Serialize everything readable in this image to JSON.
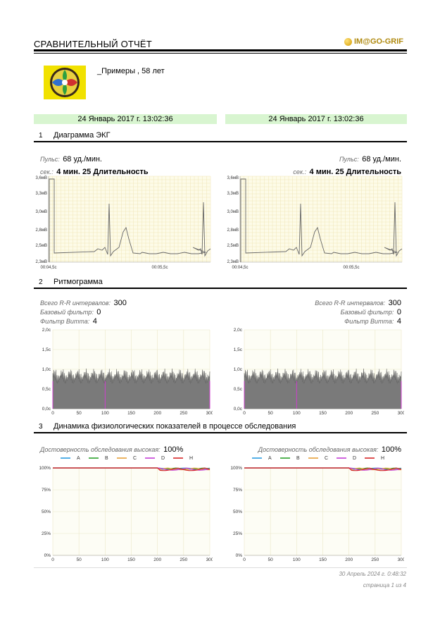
{
  "header": {
    "title": "СРАВНИТЕЛЬНЫЙ ОТЧЁТ",
    "logo": "IM@GO-GRIF"
  },
  "patient": {
    "name_age": "_Примеры , 58 лет"
  },
  "dates": {
    "left": "24 Январь 2017 г. 13:02:36",
    "right": "24 Январь 2017 г. 13:02:36"
  },
  "sections": [
    {
      "num": "1",
      "title": "Диаграмма ЭКГ"
    },
    {
      "num": "2",
      "title": "Ритмограмма"
    },
    {
      "num": "3",
      "title": "Динамика физиологических показателей в процессе обследования"
    }
  ],
  "ecg": {
    "pulse_label": "Пульс:",
    "pulse_value": "68 уд./мин.",
    "sec_label": "сек.:",
    "sec_value": "4 мин. 25 Длительность",
    "y_ticks": [
      "3,6мВ",
      "3,3мВ",
      "3,0мВ",
      "2,8мВ",
      "2,5мВ",
      "2,3мВ"
    ],
    "x_ticks": [
      "00:04,5с",
      "00:05,5с"
    ]
  },
  "rhythm": {
    "total_label": "Всего R-R интервалов:",
    "total_value": "300",
    "base_label": "Базовый фильтр:",
    "base_value": "0",
    "witt_label": "Фильтр Витта:",
    "witt_value": "4",
    "y_ticks": [
      "2,0с",
      "1,5с",
      "1,0с",
      "0,5с",
      "0,0с"
    ],
    "x_ticks": [
      "0",
      "50",
      "100",
      "150",
      "200",
      "250",
      "300"
    ]
  },
  "dynamics": {
    "reliability_label": "Достоверность обследования высокая:",
    "reliability_value": "100%",
    "legend": [
      {
        "name": "A",
        "color": "#2b9de0"
      },
      {
        "name": "B",
        "color": "#2ca02c"
      },
      {
        "name": "C",
        "color": "#e8a23a"
      },
      {
        "name": "D",
        "color": "#c43dd6"
      },
      {
        "name": "H",
        "color": "#d62728"
      }
    ],
    "y_ticks": [
      "100%",
      "75%",
      "50%",
      "25%",
      "0%"
    ],
    "x_ticks": [
      "0",
      "50",
      "100",
      "150",
      "200",
      "250",
      "300"
    ]
  },
  "footer": {
    "datetime": "30 Апрель 2024 г. 0:48:32",
    "page": "страница 1 из 4"
  }
}
